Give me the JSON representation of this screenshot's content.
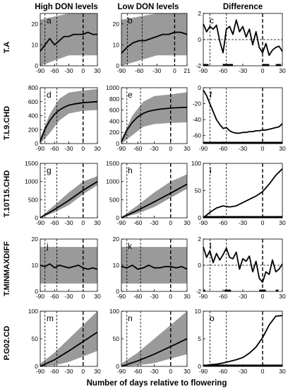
{
  "figure": {
    "column_titles": [
      "High DON levels",
      "Low DON levels",
      "Difference"
    ],
    "xlabel": "Number of days relative to flowering",
    "colors": {
      "band": "#9a9a9a",
      "mean": "#000000",
      "axis": "#000000",
      "ref_line": "#000000"
    }
  },
  "chart_data": [
    {
      "type": "area",
      "panel": "a",
      "row_label": "T.A",
      "series": [
        {
          "x": [
            -90,
            -30,
            0,
            30
          ],
          "band_low": [
            0,
            5,
            5,
            5
          ],
          "band_high": [
            22,
            25,
            25,
            25
          ]
        },
        {
          "x": [
            -90,
            -80,
            -70,
            -60,
            -50,
            -40,
            -30,
            -20,
            -10,
            0,
            10,
            20,
            30
          ],
          "values": [
            7,
            10,
            13,
            10,
            12,
            14,
            14,
            15,
            15,
            15,
            16,
            15,
            15
          ]
        }
      ],
      "xlim": [
        -90,
        30
      ],
      "ylim": [
        0,
        25
      ],
      "xticks": [
        -90,
        -60,
        -30,
        0,
        30
      ],
      "yticks": [
        0,
        10,
        20
      ],
      "vlines_dashed": [
        -80,
        -55
      ],
      "vline_thick": 0
    },
    {
      "type": "area",
      "panel": "b",
      "row_label": "T.A",
      "series": [
        {
          "x": [
            -90,
            -30,
            0,
            21
          ],
          "band_low": [
            0,
            5,
            5,
            5
          ],
          "band_high": [
            22,
            25,
            25,
            25
          ]
        },
        {
          "x": [
            -90,
            -80,
            -70,
            -60,
            -50,
            -40,
            -30,
            -20,
            -10,
            0,
            10,
            21
          ],
          "values": [
            6,
            9,
            11,
            12,
            12,
            13,
            14,
            15,
            15,
            16,
            16,
            15
          ]
        }
      ],
      "xlim": [
        -90,
        21
      ],
      "ylim": [
        0,
        25
      ],
      "xticks": [
        -90,
        -60,
        -30,
        0,
        21
      ],
      "yticks": [
        0,
        10,
        20
      ],
      "vlines_dashed": [
        -80,
        -55
      ],
      "vline_thick": 0
    },
    {
      "type": "line",
      "panel": "c",
      "row_label": "T.A",
      "series": [
        {
          "x": [
            -90,
            -85,
            -80,
            -75,
            -70,
            -65,
            -60,
            -55,
            -50,
            -45,
            -40,
            -35,
            -30,
            -25,
            -20,
            -15,
            -10,
            -5,
            0,
            5,
            10,
            15,
            20,
            25,
            30
          ],
          "values": [
            1.2,
            0.6,
            1.0,
            0.8,
            1.1,
            -0.1,
            -1.0,
            0.8,
            1.0,
            0.4,
            1.5,
            0.6,
            1.0,
            0.2,
            0.8,
            -0.4,
            0.6,
            -0.6,
            -1.0,
            -0.3,
            -1.2,
            -0.8,
            -0.6,
            -0.5,
            -0.9
          ]
        }
      ],
      "xlim": [
        -90,
        30
      ],
      "ylim": [
        -2,
        2
      ],
      "xticks": [
        -90,
        -60,
        -30,
        0,
        30
      ],
      "yticks": [
        -2,
        0,
        2
      ],
      "hline_dashed": 0,
      "vlines_dashed": [
        -80,
        -55
      ],
      "vline_thick": 0,
      "sig_bars": [
        [
          -90,
          -82
        ],
        [
          -60,
          -45
        ],
        [
          0,
          10
        ],
        [
          20,
          28
        ]
      ]
    },
    {
      "type": "area",
      "panel": "d",
      "row_label": "T.L9.CHD",
      "series": [
        {
          "x": [
            -90,
            -70,
            -50,
            -30,
            0,
            30
          ],
          "band_low": [
            0,
            150,
            330,
            430,
            470,
            480
          ],
          "band_high": [
            80,
            420,
            640,
            730,
            760,
            780
          ]
        },
        {
          "x": [
            -90,
            -80,
            -70,
            -60,
            -50,
            -40,
            -30,
            -20,
            -10,
            0,
            10,
            20,
            30
          ],
          "values": [
            30,
            210,
            330,
            420,
            480,
            520,
            550,
            565,
            575,
            585,
            590,
            595,
            600
          ]
        }
      ],
      "xlim": [
        -90,
        30
      ],
      "ylim": [
        0,
        800
      ],
      "xticks": [
        -90,
        -60,
        -30,
        0,
        30
      ],
      "yticks": [
        0,
        200,
        400,
        600,
        800
      ],
      "vlines_dashed": [
        -80,
        -55
      ],
      "vline_thick": 0
    },
    {
      "type": "area",
      "panel": "e",
      "row_label": "T.L9.CHD",
      "series": [
        {
          "x": [
            -90,
            -70,
            -50,
            -30,
            0,
            30
          ],
          "band_low": [
            0,
            150,
            300,
            350,
            370,
            380
          ],
          "band_high": [
            80,
            500,
            750,
            850,
            880,
            920
          ]
        },
        {
          "x": [
            -90,
            -80,
            -70,
            -60,
            -50,
            -40,
            -30,
            -20,
            -10,
            0,
            10,
            20,
            30
          ],
          "values": [
            30,
            240,
            380,
            480,
            540,
            580,
            600,
            615,
            625,
            635,
            640,
            645,
            650
          ]
        }
      ],
      "xlim": [
        -90,
        30
      ],
      "ylim": [
        0,
        1000
      ],
      "xticks": [
        -90,
        -60,
        -30,
        0,
        30
      ],
      "yticks": [
        0,
        200,
        400,
        600,
        800,
        1000
      ],
      "vlines_dashed": [
        -80,
        -55
      ],
      "vline_thick": 0
    },
    {
      "type": "line",
      "panel": "f",
      "row_label": "T.L9.CHD",
      "series": [
        {
          "x": [
            -90,
            -85,
            -80,
            -75,
            -70,
            -65,
            -60,
            -55,
            -50,
            -45,
            -40,
            -35,
            -30,
            -25,
            -20,
            -15,
            -10,
            -5,
            0,
            5,
            10,
            15,
            20,
            25,
            30
          ],
          "values": [
            -3,
            -10,
            -20,
            -30,
            -40,
            -46,
            -51,
            -50,
            -54,
            -56,
            -57,
            -57,
            -56,
            -56,
            -55,
            -55,
            -54,
            -54,
            -53,
            -53,
            -52,
            -51,
            -50,
            -49,
            -45
          ]
        }
      ],
      "xlim": [
        -90,
        30
      ],
      "ylim": [
        -70,
        0
      ],
      "xticks": [
        -90,
        -60,
        -30,
        0,
        30
      ],
      "yticks": [
        -60,
        -40,
        -20,
        0
      ],
      "vlines_dashed": [
        -80,
        -55
      ],
      "vline_thick": 0,
      "sig_bars": [
        [
          -90,
          30
        ]
      ]
    },
    {
      "type": "area",
      "panel": "g",
      "row_label": "T.10T15.CHD",
      "series": [
        {
          "x": [
            -90,
            -60,
            -30,
            0,
            30
          ],
          "band_low": [
            0,
            150,
            350,
            650,
            900
          ],
          "band_high": [
            20,
            350,
            700,
            1000,
            1150
          ]
        },
        {
          "x": [
            -90,
            -60,
            -30,
            0,
            30
          ],
          "values": [
            0,
            230,
            480,
            760,
            1000
          ]
        }
      ],
      "xlim": [
        -90,
        30
      ],
      "ylim": [
        0,
        1500
      ],
      "xticks": [
        -90,
        -60,
        -30,
        0,
        30
      ],
      "yticks": [
        0,
        500,
        1000,
        1500
      ],
      "vlines_dashed": [
        -80,
        -55
      ],
      "vline_thick": 0
    },
    {
      "type": "area",
      "panel": "h",
      "row_label": "T.10T15.CHD",
      "series": [
        {
          "x": [
            -90,
            -60,
            -30,
            0,
            30
          ],
          "band_low": [
            0,
            120,
            300,
            550,
            800
          ],
          "band_high": [
            20,
            350,
            700,
            1000,
            1200
          ]
        },
        {
          "x": [
            -90,
            -60,
            -30,
            0,
            30
          ],
          "values": [
            0,
            210,
            440,
            680,
            930
          ]
        }
      ],
      "xlim": [
        -90,
        30
      ],
      "ylim": [
        0,
        1500
      ],
      "xticks": [
        -90,
        -60,
        -30,
        0,
        30
      ],
      "yticks": [
        0,
        500,
        1000,
        1500
      ],
      "vlines_dashed": [
        -80,
        -55
      ],
      "vline_thick": 0
    },
    {
      "type": "line",
      "panel": "i",
      "row_label": "T.10T15.CHD",
      "series": [
        {
          "x": [
            -90,
            -80,
            -70,
            -60,
            -50,
            -40,
            -30,
            -20,
            -10,
            0,
            10,
            20,
            30
          ],
          "values": [
            0,
            10,
            18,
            22,
            20,
            22,
            28,
            34,
            40,
            48,
            62,
            78,
            90
          ]
        }
      ],
      "xlim": [
        -90,
        30
      ],
      "ylim": [
        0,
        100
      ],
      "xticks": [
        -90,
        -60,
        -30,
        0,
        30
      ],
      "yticks": [
        0,
        50,
        100
      ],
      "vlines_dashed": [
        -80,
        -55
      ],
      "vline_thick": 0,
      "sig_bars": [
        [
          -90,
          30
        ]
      ]
    },
    {
      "type": "area",
      "panel": "j",
      "row_label": "T.MINMAXDIFF",
      "series": [
        {
          "x": [
            -90,
            -30,
            0,
            30
          ],
          "band_low": [
            3,
            3,
            3,
            3
          ],
          "band_high": [
            17,
            17,
            17,
            17
          ]
        },
        {
          "x": [
            -90,
            -80,
            -70,
            -60,
            -50,
            -40,
            -30,
            -20,
            -10,
            0,
            10,
            20,
            30
          ],
          "values": [
            10,
            9.5,
            10.5,
            9,
            10,
            9.5,
            9,
            9.5,
            10,
            9,
            8.5,
            9,
            8.5
          ]
        }
      ],
      "xlim": [
        -90,
        30
      ],
      "ylim": [
        0,
        20
      ],
      "xticks": [
        -90,
        -60,
        -30,
        0,
        30
      ],
      "yticks": [
        0,
        10,
        20
      ],
      "vlines_dashed": [
        -80,
        -55
      ],
      "vline_thick": 0
    },
    {
      "type": "area",
      "panel": "k",
      "row_label": "T.MINMAXDIFF",
      "series": [
        {
          "x": [
            -90,
            -30,
            0,
            30
          ],
          "band_low": [
            3,
            3,
            3,
            3
          ],
          "band_high": [
            17,
            17,
            17,
            17
          ]
        },
        {
          "x": [
            -90,
            -80,
            -70,
            -60,
            -50,
            -40,
            -30,
            -20,
            -10,
            0,
            10,
            20,
            30
          ],
          "values": [
            9.5,
            9,
            10,
            8.5,
            9,
            10,
            9,
            9,
            9.5,
            9.5,
            9,
            9.5,
            8.5
          ]
        }
      ],
      "xlim": [
        -90,
        30
      ],
      "ylim": [
        0,
        20
      ],
      "xticks": [
        -90,
        -60,
        -30,
        0,
        30
      ],
      "yticks": [
        0,
        10,
        20
      ],
      "vlines_dashed": [
        -80,
        -55
      ],
      "vline_thick": 0
    },
    {
      "type": "line",
      "panel": "l",
      "row_label": "T.MINMAXDIFF",
      "series": [
        {
          "x": [
            -90,
            -85,
            -80,
            -75,
            -70,
            -65,
            -60,
            -55,
            -50,
            -45,
            -40,
            -35,
            -30,
            -25,
            -20,
            -15,
            -10,
            -5,
            0,
            5,
            10,
            15,
            20,
            25,
            30
          ],
          "values": [
            1.4,
            0.6,
            1.1,
            0.2,
            0.9,
            0.4,
            0.8,
            1.3,
            0.6,
            0.5,
            1.0,
            -0.3,
            0.5,
            0.3,
            0.7,
            -0.5,
            0.3,
            -1.0,
            -1.3,
            -0.5,
            -0.7,
            0.4,
            -0.5,
            -0.3,
            0.1
          ]
        }
      ],
      "xlim": [
        -90,
        30
      ],
      "ylim": [
        -2,
        2
      ],
      "xticks": [
        -90,
        -60,
        -30,
        0,
        30
      ],
      "yticks": [
        -2,
        0,
        2
      ],
      "hline_dashed": 0,
      "vlines_dashed": [
        -80,
        -55
      ],
      "vline_thick": 0,
      "sig_bars": [
        [
          -90,
          -87
        ],
        [
          -58,
          -48
        ],
        [
          -5,
          5
        ],
        [
          20,
          24
        ]
      ]
    },
    {
      "type": "area",
      "panel": "m",
      "row_label": "P.G02.CD",
      "series": [
        {
          "x": [
            -90,
            -60,
            -30,
            0,
            30
          ],
          "band_low": [
            0,
            2,
            8,
            18,
            28
          ],
          "band_high": [
            5,
            25,
            50,
            75,
            100
          ]
        },
        {
          "x": [
            -90,
            -60,
            -30,
            0,
            30
          ],
          "values": [
            0,
            12,
            28,
            45,
            62
          ]
        }
      ],
      "xlim": [
        -90,
        30
      ],
      "ylim": [
        0,
        100
      ],
      "xticks": [
        -90,
        -60,
        -30,
        0,
        30
      ],
      "yticks": [
        0,
        50,
        100
      ],
      "vlines_dashed": [
        -80,
        -55
      ],
      "vline_thick": 0
    },
    {
      "type": "area",
      "panel": "n",
      "row_label": "P.G02.CD",
      "series": [
        {
          "x": [
            -90,
            -60,
            -30,
            0,
            30
          ],
          "band_low": [
            0,
            2,
            6,
            14,
            22
          ],
          "band_high": [
            5,
            25,
            50,
            75,
            100
          ]
        },
        {
          "x": [
            -90,
            -60,
            -30,
            0,
            30
          ],
          "values": [
            0,
            10,
            22,
            36,
            50
          ]
        }
      ],
      "xlim": [
        -90,
        30
      ],
      "ylim": [
        0,
        100
      ],
      "xticks": [
        -90,
        -60,
        -30,
        0,
        30
      ],
      "yticks": [
        0,
        50,
        100
      ],
      "vlines_dashed": [
        -80,
        -55
      ],
      "vline_thick": 0
    },
    {
      "type": "line",
      "panel": "o",
      "row_label": "P.G02.CD",
      "series": [
        {
          "x": [
            -90,
            -80,
            -70,
            -60,
            -50,
            -40,
            -30,
            -20,
            -10,
            0,
            10,
            20,
            30
          ],
          "values": [
            0.1,
            0.3,
            0.4,
            0.6,
            0.9,
            1.2,
            1.6,
            2.4,
            3.5,
            5.2,
            7.5,
            9.1,
            9.2
          ]
        }
      ],
      "xlim": [
        -90,
        30
      ],
      "ylim": [
        0,
        10
      ],
      "xticks": [
        -90,
        -60,
        -30,
        0,
        30
      ],
      "yticks": [
        0,
        5,
        10
      ],
      "hline_dashed": 0,
      "vlines_dashed": [
        -80,
        -55
      ],
      "vline_thick": 0,
      "sig_bars": [
        [
          -90,
          30
        ]
      ]
    }
  ]
}
